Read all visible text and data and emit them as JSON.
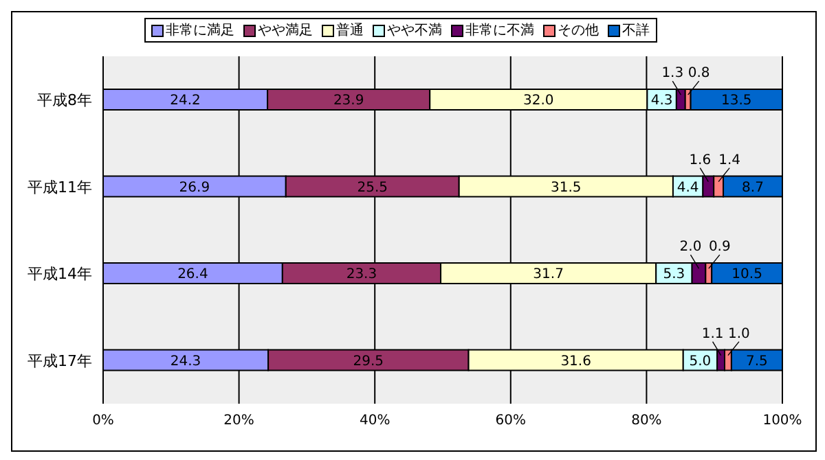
{
  "chart_data": {
    "type": "bar",
    "orientation": "horizontal",
    "stacked": true,
    "legend": "top",
    "grid": "x",
    "categories": [
      "平成8年",
      "平成11年",
      "平成14年",
      "平成17年"
    ],
    "xlim": [
      0,
      100
    ],
    "xticks": [
      {
        "value": 0,
        "label": "0%"
      },
      {
        "value": 20,
        "label": "20%"
      },
      {
        "value": 40,
        "label": "40%"
      },
      {
        "value": 60,
        "label": "60%"
      },
      {
        "value": 80,
        "label": "80%"
      },
      {
        "value": 100,
        "label": "100%"
      }
    ],
    "series": [
      {
        "name": "非常に満足",
        "color": "#9999ff",
        "values": [
          24.2,
          26.9,
          26.4,
          24.3
        ],
        "value_labels": [
          "24.2",
          "26.9",
          "26.4",
          "24.3"
        ]
      },
      {
        "name": "やや満足",
        "color": "#993366",
        "values": [
          23.9,
          25.5,
          23.3,
          29.5
        ],
        "value_labels": [
          "23.9",
          "25.5",
          "23.3",
          "29.5"
        ]
      },
      {
        "name": "普通",
        "color": "#ffffcc",
        "values": [
          32.0,
          31.5,
          31.7,
          31.6
        ],
        "value_labels": [
          "32.0",
          "31.5",
          "31.7",
          "31.6"
        ]
      },
      {
        "name": "やや不満",
        "color": "#ccffff",
        "values": [
          4.3,
          4.4,
          5.3,
          5.0
        ],
        "value_labels": [
          "4.3",
          "4.4",
          "5.3",
          "5.0"
        ]
      },
      {
        "name": "非常に不満",
        "color": "#660066",
        "values": [
          1.3,
          1.6,
          2.0,
          1.1
        ],
        "value_labels": [
          "1.3",
          "1.6",
          "2.0",
          "1.1"
        ]
      },
      {
        "name": "その他",
        "color": "#ff8080",
        "values": [
          0.8,
          1.4,
          0.9,
          1.0
        ],
        "value_labels": [
          "0.8",
          "1.4",
          "0.9",
          "1.0"
        ]
      },
      {
        "name": "不詳",
        "color": "#0066cc",
        "values": [
          13.5,
          8.7,
          10.5,
          7.5
        ],
        "value_labels": [
          "13.5",
          "8.7",
          "10.5",
          "7.5"
        ]
      }
    ]
  }
}
